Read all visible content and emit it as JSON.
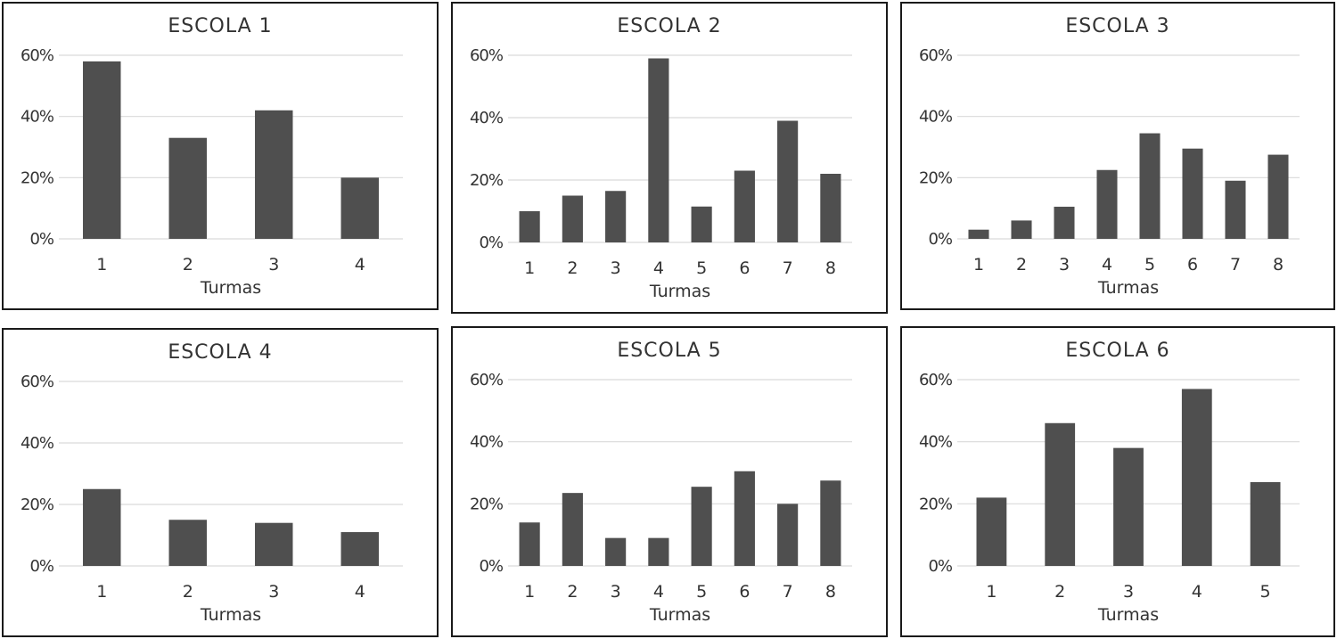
{
  "chart_data": [
    {
      "type": "bar",
      "title": "ESCOLA 1",
      "xlabel": "Turmas",
      "ylabel": "",
      "ylim": [
        0,
        0.6
      ],
      "yticks": [
        "0%",
        "20%",
        "40%",
        "60%"
      ],
      "categories": [
        "1",
        "2",
        "3",
        "4"
      ],
      "values": [
        0.58,
        0.33,
        0.42,
        0.2
      ],
      "grid": true,
      "bar_color": "#4f4f4f"
    },
    {
      "type": "bar",
      "title": "ESCOLA 2",
      "xlabel": "Turmas",
      "ylabel": "",
      "ylim": [
        0,
        0.6
      ],
      "yticks": [
        "0%",
        "20%",
        "40%",
        "60%"
      ],
      "categories": [
        "1",
        "2",
        "3",
        "4",
        "5",
        "6",
        "7",
        "8"
      ],
      "values": [
        0.1,
        0.15,
        0.165,
        0.59,
        0.115,
        0.23,
        0.39,
        0.22
      ],
      "grid": true,
      "bar_color": "#4f4f4f"
    },
    {
      "type": "bar",
      "title": "ESCOLA 3",
      "xlabel": "Turmas",
      "ylabel": "",
      "ylim": [
        0,
        0.6
      ],
      "yticks": [
        "0%",
        "20%",
        "40%",
        "60%"
      ],
      "categories": [
        "1",
        "2",
        "3",
        "4",
        "5",
        "6",
        "7",
        "8"
      ],
      "values": [
        0.03,
        0.06,
        0.105,
        0.225,
        0.345,
        0.295,
        0.19,
        0.275
      ],
      "grid": true,
      "bar_color": "#4f4f4f"
    },
    {
      "type": "bar",
      "title": "ESCOLA 4",
      "xlabel": "Turmas",
      "ylabel": "",
      "ylim": [
        0,
        0.6
      ],
      "yticks": [
        "0%",
        "20%",
        "40%",
        "60%"
      ],
      "categories": [
        "1",
        "2",
        "3",
        "4"
      ],
      "values": [
        0.25,
        0.15,
        0.14,
        0.11
      ],
      "grid": true,
      "bar_color": "#4f4f4f"
    },
    {
      "type": "bar",
      "title": "ESCOLA 5",
      "xlabel": "Turmas",
      "ylabel": "",
      "ylim": [
        0,
        0.6
      ],
      "yticks": [
        "0%",
        "20%",
        "40%",
        "60%"
      ],
      "categories": [
        "1",
        "2",
        "3",
        "4",
        "5",
        "6",
        "7",
        "8"
      ],
      "values": [
        0.14,
        0.235,
        0.09,
        0.09,
        0.255,
        0.305,
        0.2,
        0.275
      ],
      "grid": true,
      "bar_color": "#4f4f4f"
    },
    {
      "type": "bar",
      "title": "ESCOLA 6",
      "xlabel": "Turmas",
      "ylabel": "",
      "ylim": [
        0,
        0.6
      ],
      "yticks": [
        "0%",
        "20%",
        "40%",
        "60%"
      ],
      "categories": [
        "1",
        "2",
        "3",
        "4",
        "5"
      ],
      "values": [
        0.22,
        0.46,
        0.38,
        0.57,
        0.27
      ],
      "grid": true,
      "bar_color": "#4f4f4f"
    }
  ]
}
